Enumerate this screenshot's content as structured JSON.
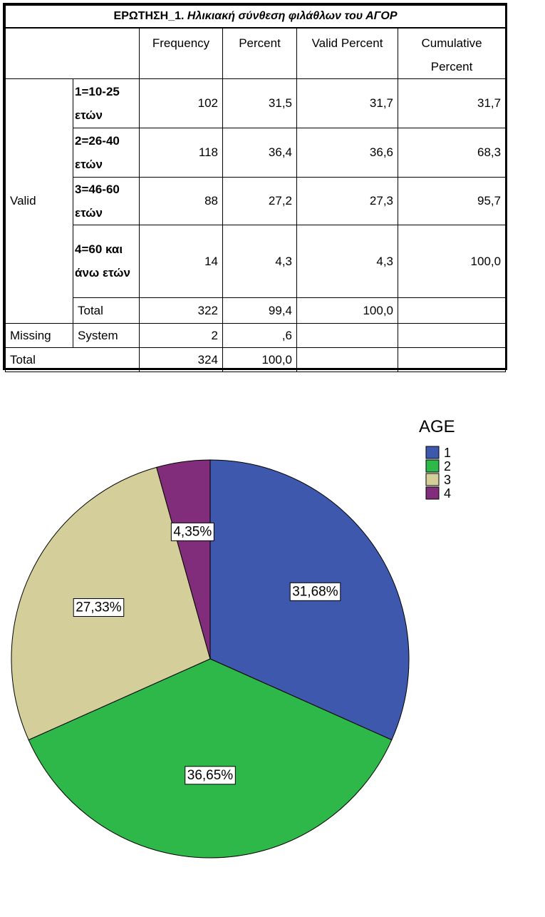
{
  "table": {
    "caption_prefix": "ΕΡΩΤΗΣΗ_1.",
    "caption_italic": "Ηλικιακή σύνθεση φιλάθλων του ΑΓΟΡ",
    "headers": [
      "Frequency",
      "Percent",
      "Valid Percent",
      "Cumulative Percent"
    ],
    "valid_label": "Valid",
    "missing_label": "Missing",
    "total_label": "Total",
    "valid_rows": [
      {
        "label": "1=10-25 ετών",
        "frequency": "102",
        "percent": "31,5",
        "valid_percent": "31,7",
        "cumulative": "31,7"
      },
      {
        "label": "2=26-40 ετών",
        "frequency": "118",
        "percent": "36,4",
        "valid_percent": "36,6",
        "cumulative": "68,3"
      },
      {
        "label": "3=46-60 ετών",
        "frequency": "88",
        "percent": "27,2",
        "valid_percent": "27,3",
        "cumulative": "95,7"
      },
      {
        "label": "4=60 και άνω ετών",
        "frequency": "14",
        "percent": "4,3",
        "valid_percent": "4,3",
        "cumulative": "100,0"
      }
    ],
    "valid_total": {
      "label": "Total",
      "frequency": "322",
      "percent": "99,4",
      "valid_percent": "100,0"
    },
    "missing_row": {
      "label": "System",
      "frequency": "2",
      "percent": ",6"
    },
    "grand_total": {
      "frequency": "324",
      "percent": "100,0"
    }
  },
  "chart_data": {
    "type": "pie",
    "legend_title": "AGE",
    "legend_position": "top-right",
    "slices": [
      {
        "category": "1",
        "value": 31.68,
        "label": "31,68%",
        "color": "#3E58AD"
      },
      {
        "category": "2",
        "value": 36.65,
        "label": "36,65%",
        "color": "#2EB84A"
      },
      {
        "category": "3",
        "value": 27.33,
        "label": "27,33%",
        "color": "#D4CF9A"
      },
      {
        "category": "4",
        "value": 4.35,
        "label": "4,35%",
        "color": "#822C7C"
      }
    ]
  }
}
